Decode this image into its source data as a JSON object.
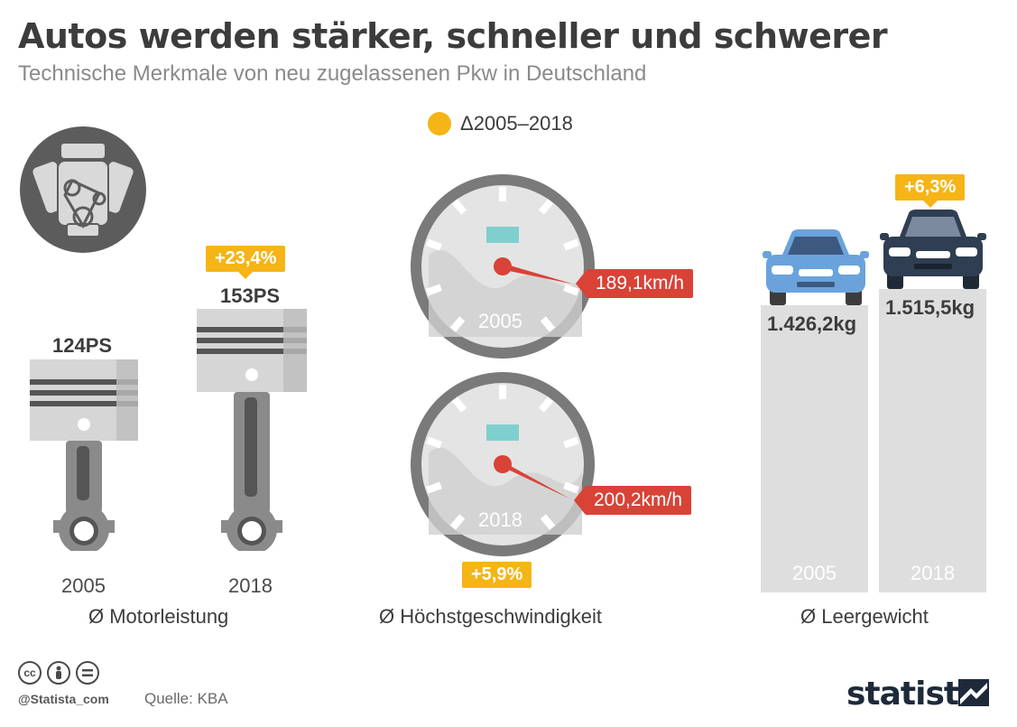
{
  "header": {
    "title": "Autos werden stärker, schneller und schwerer",
    "subtitle": "Technische Merkmale von neu zugelassenen Pkw in Deutschland"
  },
  "legend": {
    "label": "Δ2005–2018",
    "color": "#f5b517"
  },
  "motor": {
    "category": "Ø Motorleistung",
    "badge": "+23,4%",
    "items": [
      {
        "year": "2005",
        "value": "124PS"
      },
      {
        "year": "2018",
        "value": "153PS"
      }
    ]
  },
  "speed": {
    "category": "Ø Höchstgeschwindigkeit",
    "badge": "+5,9%",
    "items": [
      {
        "year": "2005",
        "value": "189,1km/h"
      },
      {
        "year": "2018",
        "value": "200,2km/h"
      }
    ]
  },
  "weight": {
    "category": "Ø Leergewicht",
    "badge": "+6,3%",
    "items": [
      {
        "year": "2005",
        "value": "1.426,2kg"
      },
      {
        "year": "2018",
        "value": "1.515,5kg"
      }
    ]
  },
  "footer": {
    "handle": "@Statista_com",
    "source": "Quelle: KBA",
    "brand": "statista",
    "license_icons": [
      "cc-icon",
      "by-icon",
      "nd-icon"
    ]
  },
  "colors": {
    "accent": "#f5b517",
    "red": "#d94236",
    "gray_bar": "#dedede",
    "car_2005": "#6aa3dc",
    "car_2018": "#2f3e52"
  }
}
